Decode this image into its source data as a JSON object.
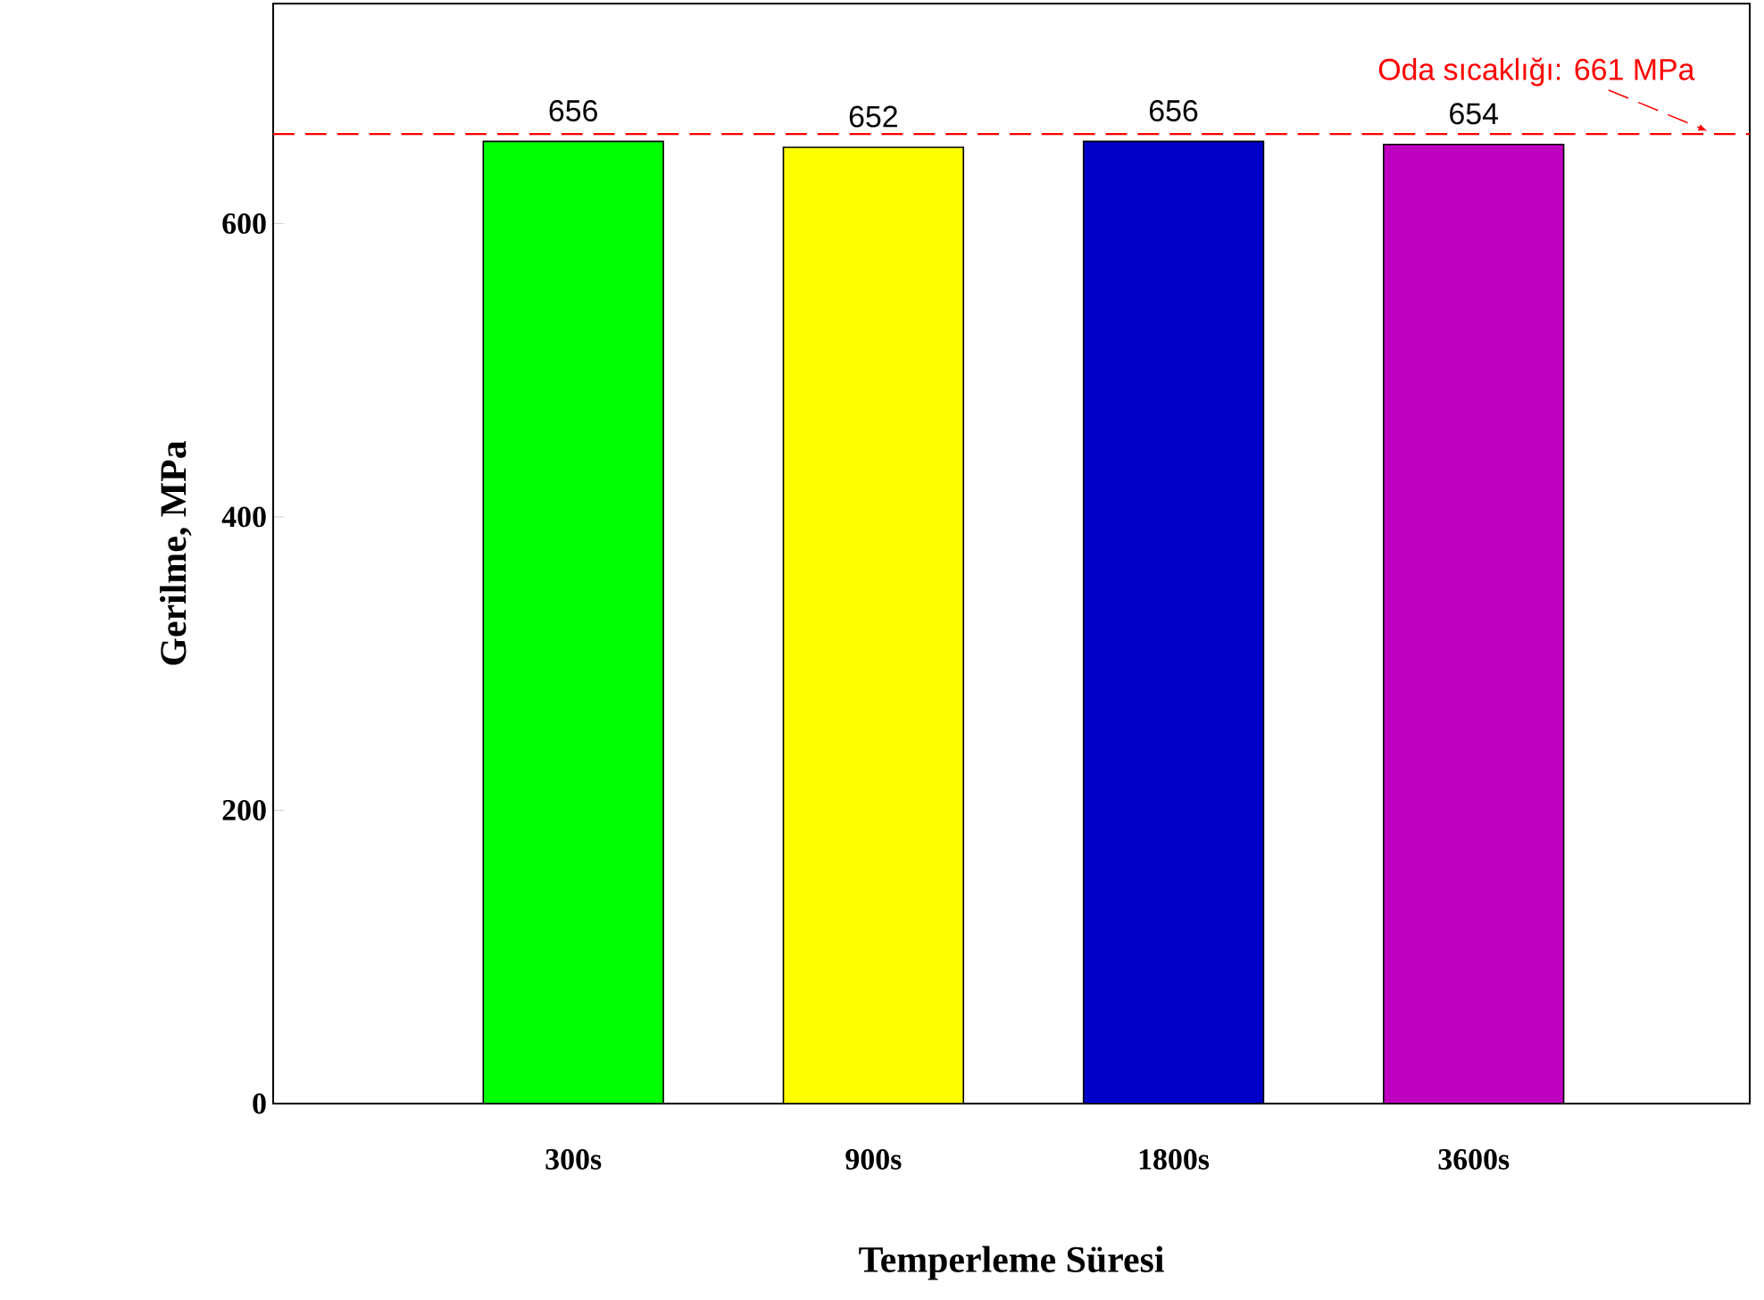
{
  "chart_data": {
    "type": "bar",
    "xlabel": "Temperleme Süresi",
    "ylabel": "Gerilme, MPa",
    "categories": [
      "300s",
      "900s",
      "1800s",
      "3600s"
    ],
    "values": [
      656,
      652,
      656,
      654
    ],
    "colors": [
      "#00ff00",
      "#ffff00",
      "#0000c8",
      "#c000c0"
    ],
    "ylim": [
      0,
      750
    ],
    "yticks": [
      0,
      200,
      400,
      600
    ],
    "data_labels": true,
    "ref_lines": [
      {
        "axis": "y",
        "value": 661,
        "label": "Oda sıcaklığı: 661 MPa",
        "color": "#ff0000",
        "line_style": "dashed"
      }
    ]
  }
}
